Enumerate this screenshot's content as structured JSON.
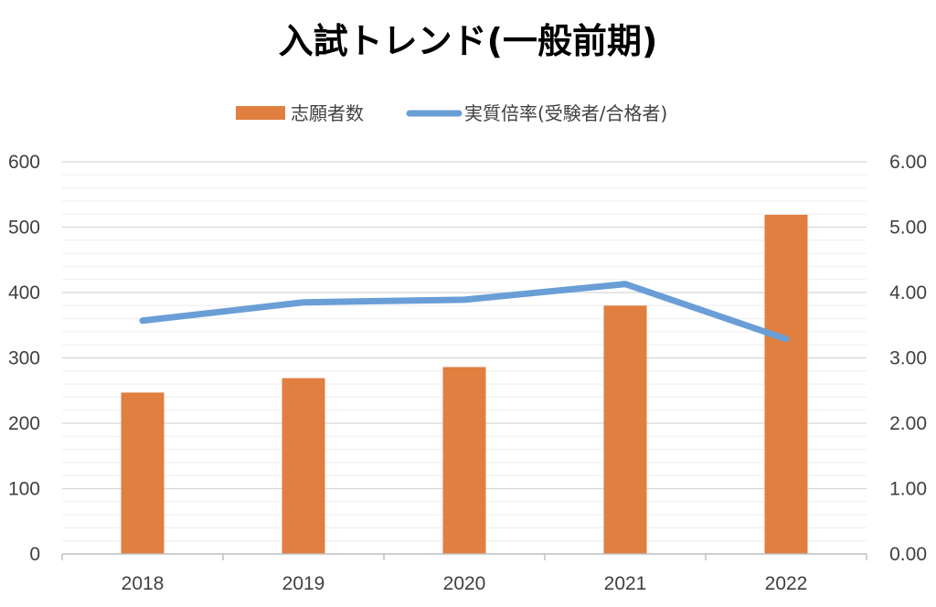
{
  "chart_data": {
    "type": "bar",
    "title": "入試トレンド(一般前期)",
    "categories": [
      "2018",
      "2019",
      "2020",
      "2021",
      "2022"
    ],
    "series": [
      {
        "name": "志願者数",
        "type": "bar",
        "axis": "left",
        "color": "#E07F40",
        "values": [
          247,
          269,
          286,
          380,
          519
        ]
      },
      {
        "name": "実質倍率(受験者/合格者)",
        "type": "line",
        "axis": "right",
        "color": "#6A9ED6",
        "values": [
          3.57,
          3.85,
          3.89,
          4.13,
          3.29
        ]
      }
    ],
    "ylim_left": [
      0,
      600
    ],
    "yticks_left": [
      "0",
      "100",
      "200",
      "300",
      "400",
      "500",
      "600"
    ],
    "ylim_right": [
      0,
      6
    ],
    "yticks_right": [
      "0.00",
      "1.00",
      "2.00",
      "3.00",
      "4.00",
      "5.00",
      "6.00"
    ],
    "grid": true,
    "legend_position": "top"
  }
}
